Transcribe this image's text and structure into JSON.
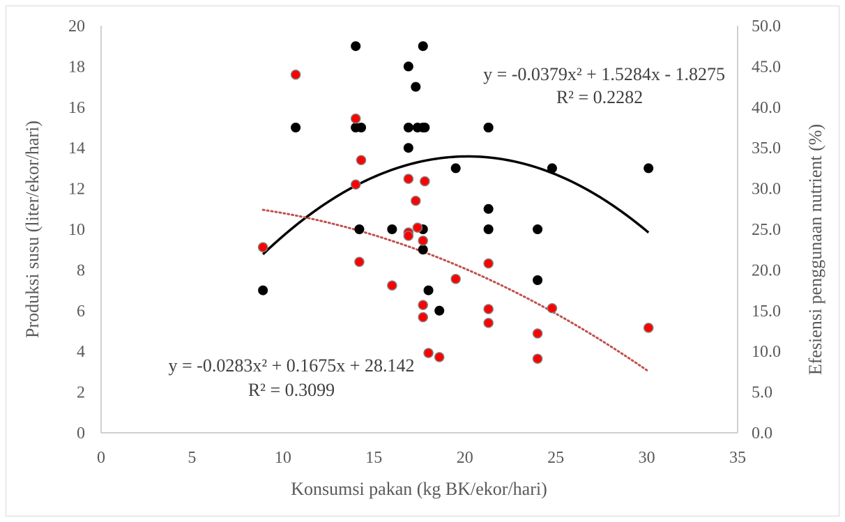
{
  "chart_data": {
    "type": "scatter",
    "title": "",
    "xlabel": "Konsumsi pakan (kg BK/ekor/hari)",
    "ylabel": "Produksi susu (liter/ekor/hari)",
    "y2label": "Efesiensi  penggunaan nutrient (%)",
    "xlim": [
      0,
      35
    ],
    "ylim": [
      0,
      20
    ],
    "y2lim": [
      0,
      50
    ],
    "x_ticks": [
      "0",
      "5",
      "10",
      "15",
      "20",
      "25",
      "30",
      "35"
    ],
    "y_ticks": [
      "0",
      "2",
      "4",
      "6",
      "8",
      "10",
      "12",
      "14",
      "16",
      "18",
      "20"
    ],
    "y2_ticks": [
      "0.0",
      "5.0",
      "10.0",
      "15.0",
      "20.0",
      "25.0",
      "30.0",
      "35.0",
      "40.0",
      "45.0",
      "50.0"
    ],
    "grid": false,
    "legend": "none",
    "series": [
      {
        "color": "#000000",
        "axis": "left",
        "points": [
          [
            8.9,
            7
          ],
          [
            10.7,
            15
          ],
          [
            14.0,
            19
          ],
          [
            14.0,
            15
          ],
          [
            14.3,
            15
          ],
          [
            14.2,
            10
          ],
          [
            16.0,
            10
          ],
          [
            16.9,
            18
          ],
          [
            16.9,
            15
          ],
          [
            16.9,
            14
          ],
          [
            17.3,
            17
          ],
          [
            17.4,
            15
          ],
          [
            17.7,
            19
          ],
          [
            17.7,
            15
          ],
          [
            17.8,
            15
          ],
          [
            17.7,
            10
          ],
          [
            17.7,
            9
          ],
          [
            18.0,
            7
          ],
          [
            18.6,
            6
          ],
          [
            19.5,
            13
          ],
          [
            21.3,
            15
          ],
          [
            21.3,
            15
          ],
          [
            21.3,
            11
          ],
          [
            21.3,
            10
          ],
          [
            24.0,
            10
          ],
          [
            24.0,
            7.5
          ],
          [
            24.8,
            13
          ],
          [
            30.1,
            13
          ]
        ],
        "trendline": {
          "type": "polynomial",
          "style": "solid",
          "coefficients": [
            -0.0379,
            1.5284,
            -1.8275
          ],
          "range": [
            8.9,
            30.1
          ],
          "equation": "y = -0.0379x² + 1.5284x - 1.8275",
          "r2": "R² = 0.2282"
        }
      },
      {
        "color": "#ff0000",
        "axis": "right",
        "points": [
          [
            8.9,
            22.8
          ],
          [
            10.7,
            44.0
          ],
          [
            14.0,
            38.6
          ],
          [
            14.0,
            30.5
          ],
          [
            14.3,
            33.5
          ],
          [
            14.2,
            21.0
          ],
          [
            16.0,
            18.1
          ],
          [
            16.9,
            31.2
          ],
          [
            16.9,
            24.6
          ],
          [
            16.9,
            24.2
          ],
          [
            17.3,
            28.5
          ],
          [
            17.4,
            25.2
          ],
          [
            17.8,
            30.9
          ],
          [
            17.7,
            23.6
          ],
          [
            17.7,
            15.7
          ],
          [
            17.7,
            14.2
          ],
          [
            18.0,
            9.8
          ],
          [
            18.6,
            9.3
          ],
          [
            19.5,
            18.9
          ],
          [
            21.3,
            20.8
          ],
          [
            21.3,
            15.2
          ],
          [
            21.3,
            13.5
          ],
          [
            24.0,
            12.2
          ],
          [
            24.0,
            9.1
          ],
          [
            24.8,
            15.3
          ],
          [
            30.1,
            12.9
          ]
        ],
        "trendline": {
          "type": "polynomial",
          "style": "dotted",
          "coefficients": [
            -0.0283,
            0.1675,
            28.142
          ],
          "range": [
            8.9,
            30.1
          ],
          "equation": "y = -0.0283x² + 0.1675x + 28.142",
          "r2": "R² = 0.3099"
        }
      }
    ]
  }
}
